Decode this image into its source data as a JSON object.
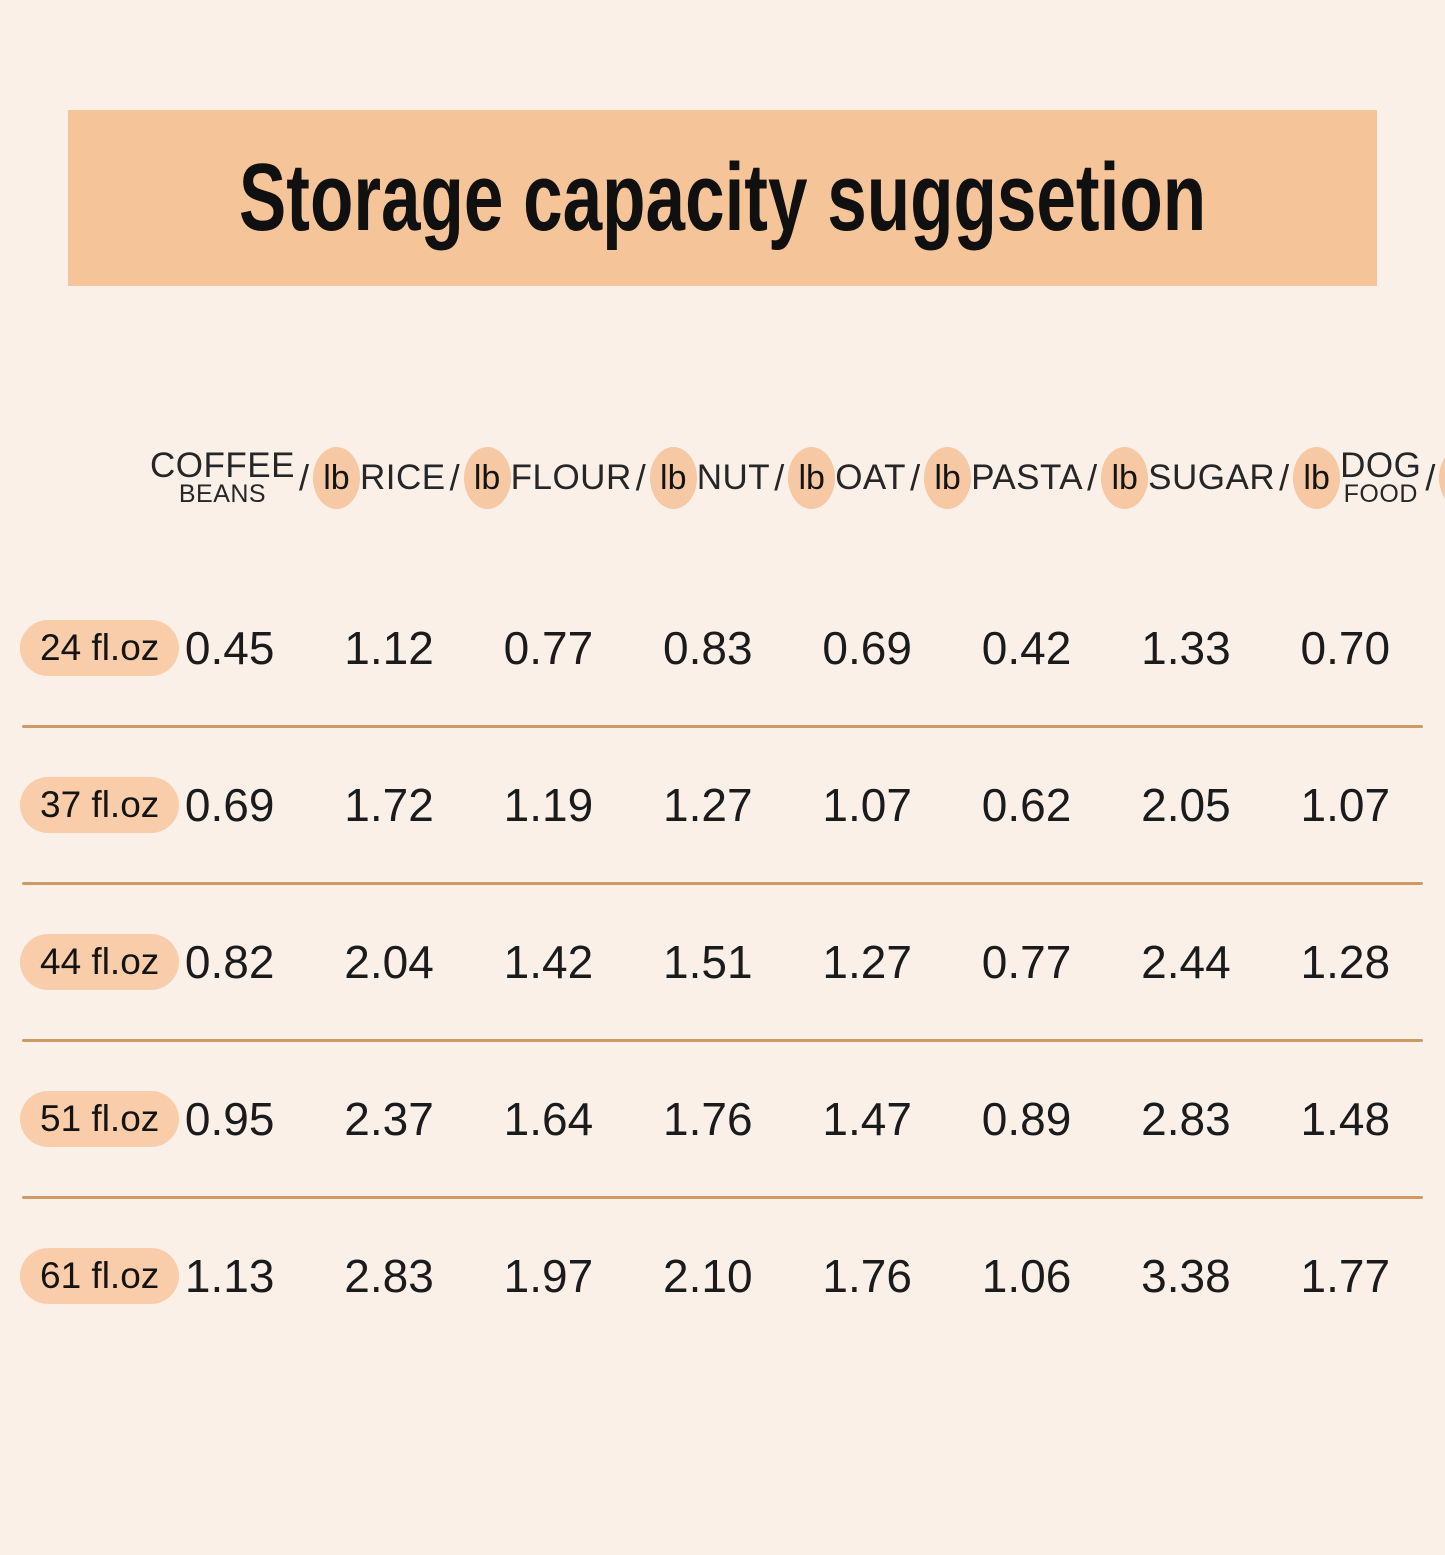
{
  "banner": {
    "title": "Storage capacity suggsetion",
    "background": "#F5C499"
  },
  "colors": {
    "page_background": "#FAF0E8",
    "banner_background": "#F5C499",
    "row_label_pill": "#F9CDAA",
    "unit_badge": "#F6C8A3",
    "divider": "#CE9A63",
    "text": "#1b1b1b"
  },
  "table": {
    "separator": "/",
    "columns": [
      {
        "name": "COFFEE",
        "subname": "BEANS",
        "unit": "lb"
      },
      {
        "name": "RICE",
        "unit": "lb"
      },
      {
        "name": "FLOUR",
        "unit": "lb"
      },
      {
        "name": "NUT",
        "unit": "lb"
      },
      {
        "name": "OAT",
        "unit": "lb"
      },
      {
        "name": "PASTA",
        "unit": "lb"
      },
      {
        "name": "SUGAR",
        "unit": "lb"
      },
      {
        "name": "DOG",
        "subname": "FOOD",
        "unit": "lb"
      }
    ],
    "rows": [
      {
        "label": "24 fl.oz",
        "values": [
          "0.45",
          "1.12",
          "0.77",
          "0.83",
          "0.69",
          "0.42",
          "1.33",
          "0.70"
        ]
      },
      {
        "label": "37 fl.oz",
        "values": [
          "0.69",
          "1.72",
          "1.19",
          "1.27",
          "1.07",
          "0.62",
          "2.05",
          "1.07"
        ]
      },
      {
        "label": "44 fl.oz",
        "values": [
          "0.82",
          "2.04",
          "1.42",
          "1.51",
          "1.27",
          "0.77",
          "2.44",
          "1.28"
        ]
      },
      {
        "label": "51 fl.oz",
        "values": [
          "0.95",
          "2.37",
          "1.64",
          "1.76",
          "1.47",
          "0.89",
          "2.83",
          "1.48"
        ]
      },
      {
        "label": "61 fl.oz",
        "values": [
          "1.13",
          "2.83",
          "1.97",
          "2.10",
          "1.76",
          "1.06",
          "3.38",
          "1.77"
        ]
      }
    ]
  },
  "chart_data": {
    "type": "table",
    "title": "Storage capacity suggsetion",
    "row_labels": [
      "24 fl.oz",
      "37 fl.oz",
      "44 fl.oz",
      "51 fl.oz",
      "61 fl.oz"
    ],
    "columns": [
      "COFFEE BEANS/lb",
      "RICE/lb",
      "FLOUR/lb",
      "NUT/lb",
      "OAT/lb",
      "PASTA/lb",
      "SUGAR/lb",
      "DOG FOOD/lb"
    ],
    "values": [
      [
        0.45,
        1.12,
        0.77,
        0.83,
        0.69,
        0.42,
        1.33,
        0.7
      ],
      [
        0.69,
        1.72,
        1.19,
        1.27,
        1.07,
        0.62,
        2.05,
        1.07
      ],
      [
        0.82,
        2.04,
        1.42,
        1.51,
        1.27,
        0.77,
        2.44,
        1.28
      ],
      [
        0.95,
        2.37,
        1.64,
        1.76,
        1.47,
        0.89,
        2.83,
        1.48
      ],
      [
        1.13,
        2.83,
        1.97,
        2.1,
        1.76,
        1.06,
        3.38,
        1.77
      ]
    ],
    "units": "lb",
    "layout": {
      "grid": "horizontal dividers between rows",
      "legend": "none"
    }
  }
}
